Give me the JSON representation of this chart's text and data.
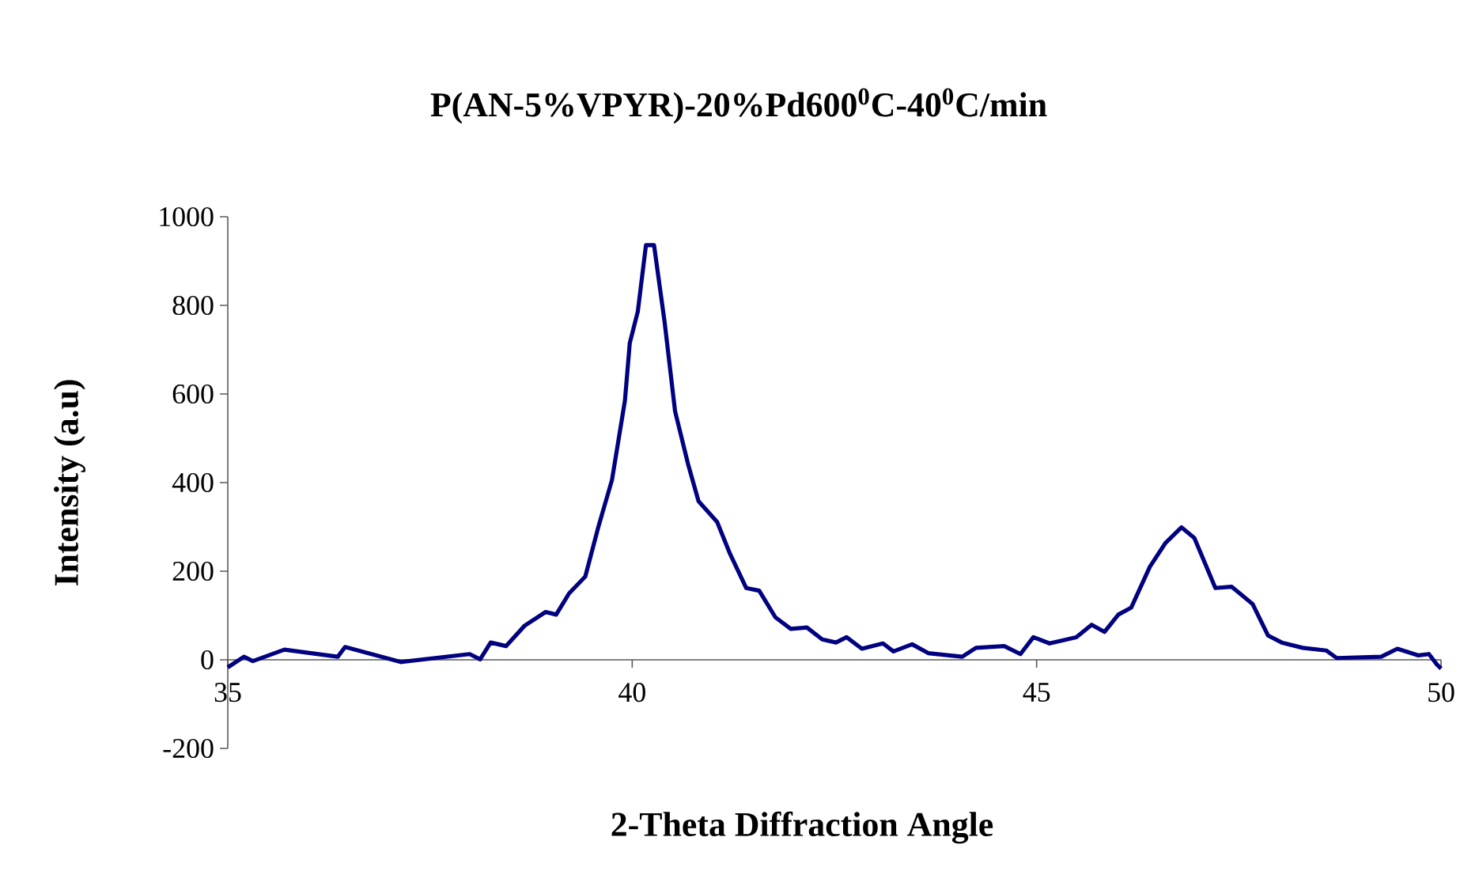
{
  "chart_data": {
    "type": "line",
    "title": "P(AN-5%VPYR)-20%Pd600$^{0}$C-40$^{0}$C/min",
    "xlabel": "2-Theta Diffraction Angle",
    "ylabel": "Intensity (a.u)",
    "xlim": [
      35,
      50
    ],
    "ylim": [
      -200,
      1000
    ],
    "xticks": [
      35,
      40,
      45,
      50
    ],
    "yticks": [
      -200,
      0,
      200,
      400,
      600,
      800,
      1000
    ],
    "grid": false,
    "marker": "none",
    "line_style": "solid",
    "series": [
      {
        "color": "#000080",
        "x": [
          35.0,
          35.2,
          35.31,
          35.7,
          36.36,
          36.45,
          37.14,
          37.99,
          38.12,
          38.25,
          38.44,
          38.67,
          38.93,
          39.06,
          39.22,
          39.42,
          39.58,
          39.75,
          39.91,
          39.97,
          40.07,
          40.17,
          40.27,
          40.4,
          40.53,
          40.69,
          40.82,
          41.05,
          41.21,
          41.41,
          41.57,
          41.77,
          41.96,
          42.16,
          42.35,
          42.52,
          42.65,
          42.84,
          43.1,
          43.23,
          43.46,
          43.66,
          44.08,
          44.25,
          44.6,
          44.8,
          44.96,
          45.16,
          45.49,
          45.68,
          45.84,
          46.01,
          46.17,
          46.4,
          46.59,
          46.79,
          46.95,
          47.21,
          47.41,
          47.67,
          47.86,
          48.03,
          48.29,
          48.58,
          48.71,
          49.26,
          49.46,
          49.72,
          49.85,
          49.95,
          50.0
        ],
        "values": [
          -17,
          7,
          -3,
          23,
          7,
          29,
          -5,
          13,
          1,
          39,
          31,
          77,
          108,
          102,
          150,
          188,
          299,
          406,
          585,
          715,
          787,
          936,
          936,
          763,
          561,
          442,
          358,
          311,
          239,
          162,
          156,
          96,
          70,
          73,
          46,
          39,
          51,
          25,
          37,
          19,
          35,
          15,
          7,
          27,
          31,
          13,
          51,
          37,
          51,
          79,
          63,
          102,
          118,
          210,
          263,
          299,
          275,
          162,
          165,
          126,
          55,
          39,
          27,
          21,
          4,
          7,
          25,
          10,
          13,
          -11,
          -20
        ]
      }
    ]
  }
}
